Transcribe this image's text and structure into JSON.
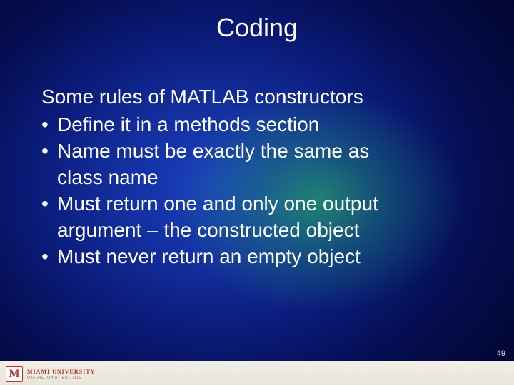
{
  "slide": {
    "title": "Coding",
    "lead": "Some rules of MATLAB constructors",
    "bullets": [
      {
        "text": "Define it in a methods section"
      },
      {
        "text": "Name must be exactly the same as",
        "cont": "class name"
      },
      {
        "text": "Must return one and only one output",
        "cont": "argument – the constructed object"
      },
      {
        "text": "Must never return an empty object"
      }
    ],
    "page_number": "49",
    "title_fontsize": 36,
    "body_fontsize": 28,
    "text_color": "#ffffff",
    "bg_gradient": {
      "center_blue": "#1a3fc0",
      "mid_blue": "#0a1a78",
      "edge_blue": "#020530",
      "green_glow": "#28c850"
    }
  },
  "footer": {
    "logo_letter": "M",
    "logo_line1": "MIAMI UNIVERSITY",
    "logo_line2": "OXFORD, OHIO · EST. 1809",
    "bg_color": "#e9e5da",
    "accent_color": "#b8342a"
  }
}
